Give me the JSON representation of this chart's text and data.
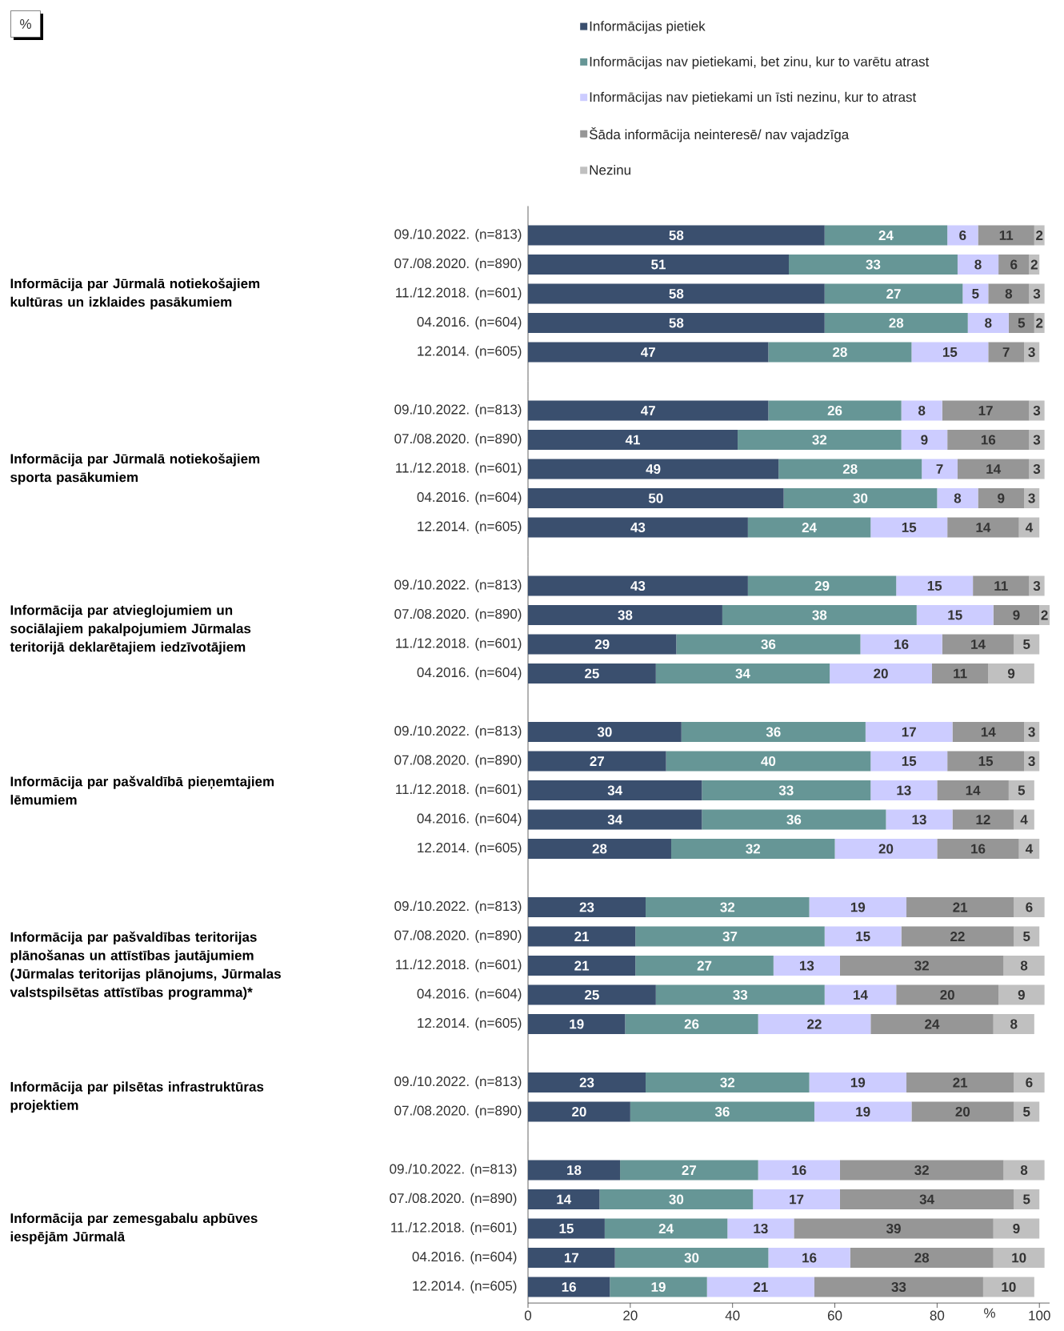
{
  "chart_data": [
    {
      "type": "bar",
      "orientation": "horizontal",
      "stacked": true,
      "data_labels": true,
      "legend": "top",
      "tick_labels": "y",
      "ylabel": "Informācija par Jūrmalā notiekošajiem kultūras un izklaides pasākumiem",
      "annotations": [
        "%"
      ],
      "categories": [
        "09./10.2022. (n=813)",
        "07./08.2020. (n=890)",
        "11./12.2018. (n=601)",
        "04.2016. (n=604)",
        "12.2014. (n=605)"
      ],
      "series": [
        {
          "name": "Informācijas pietiek",
          "color": "#3a4f6e",
          "values": [
            58,
            51,
            58,
            58,
            47
          ]
        },
        {
          "name": "Informācijas nav pietiekami, bet zinu, kur to varētu atrast",
          "color": "#669696",
          "values": [
            24,
            33,
            27,
            28,
            28
          ]
        },
        {
          "name": "Informācijas nav pietiekami un īsti nezinu, kur to atrast",
          "color": "#ccccff",
          "values": [
            6,
            8,
            5,
            8,
            15
          ]
        },
        {
          "name": "Šāda informācija neinteresē/ nav vajadzīga",
          "color": "#969696",
          "values": [
            11,
            6,
            8,
            5,
            7
          ]
        },
        {
          "name": "Nezinu",
          "color": "#c0c0c0",
          "values": [
            2,
            2,
            3,
            2,
            3
          ]
        }
      ]
    },
    {
      "type": "bar",
      "orientation": "horizontal",
      "stacked": true,
      "data_labels": true,
      "tick_labels": "y",
      "ylabel": "Informācija par Jūrmalā notiekošajiem sporta pasākumiem",
      "categories": [
        "09./10.2022. (n=813)",
        "07./08.2020. (n=890)",
        "11./12.2018. (n=601)",
        "04.2016. (n=604)",
        "12.2014. (n=605)"
      ],
      "series": [
        {
          "color": "#3a4f6e",
          "values": [
            47,
            41,
            49,
            50,
            43
          ]
        },
        {
          "color": "#669696",
          "values": [
            26,
            32,
            28,
            30,
            24
          ]
        },
        {
          "color": "#ccccff",
          "values": [
            8,
            9,
            7,
            8,
            15
          ]
        },
        {
          "color": "#969696",
          "values": [
            17,
            16,
            14,
            9,
            14
          ]
        },
        {
          "color": "#c0c0c0",
          "values": [
            3,
            3,
            3,
            3,
            4
          ]
        }
      ]
    },
    {
      "type": "bar",
      "orientation": "horizontal",
      "stacked": true,
      "data_labels": true,
      "tick_labels": "y",
      "ylabel": "Informācija par atvieglojumiem un sociālajiem pakalpojumiem Jūrmalas teritorijā deklarētajiem iedzīvotājiem",
      "categories": [
        "09./10.2022. (n=813)",
        "07./08.2020. (n=890)",
        "11./12.2018. (n=601)",
        "04.2016. (n=604)"
      ],
      "series": [
        {
          "color": "#3a4f6e",
          "values": [
            43,
            38,
            29,
            25
          ]
        },
        {
          "color": "#669696",
          "values": [
            29,
            38,
            36,
            34
          ]
        },
        {
          "color": "#ccccff",
          "values": [
            15,
            15,
            16,
            20
          ]
        },
        {
          "color": "#969696",
          "values": [
            11,
            9,
            14,
            11
          ]
        },
        {
          "color": "#c0c0c0",
          "values": [
            3,
            2,
            5,
            9
          ]
        }
      ]
    },
    {
      "type": "bar",
      "orientation": "horizontal",
      "stacked": true,
      "data_labels": true,
      "tick_labels": "y",
      "ylabel": "Informācija par pašvaldībā pieņemtajiem lēmumiem",
      "categories": [
        "09./10.2022. (n=813)",
        "07./08.2020. (n=890)",
        "11./12.2018. (n=601)",
        "04.2016. (n=604)",
        "12.2014. (n=605)"
      ],
      "series": [
        {
          "color": "#3a4f6e",
          "values": [
            30,
            27,
            34,
            34,
            28
          ]
        },
        {
          "color": "#669696",
          "values": [
            36,
            40,
            33,
            36,
            32
          ]
        },
        {
          "color": "#ccccff",
          "values": [
            17,
            15,
            13,
            13,
            20
          ]
        },
        {
          "color": "#969696",
          "values": [
            14,
            15,
            14,
            12,
            16
          ]
        },
        {
          "color": "#c0c0c0",
          "values": [
            3,
            3,
            5,
            4,
            4
          ]
        }
      ]
    },
    {
      "type": "bar",
      "orientation": "horizontal",
      "stacked": true,
      "data_labels": true,
      "tick_labels": "y",
      "ylabel": "Informācija par pašvaldības teritorijas plānošanas un attīstības jautājumiem (Jūrmalas teritorijas plānojums, Jūrmalas valstspilsētas attīstības programma)*",
      "categories": [
        "09./10.2022. (n=813)",
        "07./08.2020. (n=890)",
        "11./12.2018. (n=601)",
        "04.2016. (n=604)",
        "12.2014. (n=605)"
      ],
      "series": [
        {
          "color": "#3a4f6e",
          "values": [
            23,
            21,
            21,
            25,
            19
          ]
        },
        {
          "color": "#669696",
          "values": [
            32,
            37,
            27,
            33,
            26
          ]
        },
        {
          "color": "#ccccff",
          "values": [
            19,
            15,
            13,
            14,
            22
          ]
        },
        {
          "color": "#969696",
          "values": [
            21,
            22,
            32,
            20,
            24
          ]
        },
        {
          "color": "#c0c0c0",
          "values": [
            6,
            5,
            8,
            9,
            8
          ]
        }
      ]
    },
    {
      "type": "bar",
      "orientation": "horizontal",
      "stacked": true,
      "data_labels": true,
      "tick_labels": "y",
      "ylabel": "Informācija par pilsētas infrastruktūras projektiem",
      "categories": [
        "09./10.2022. (n=813)",
        "07./08.2020. (n=890)"
      ],
      "series": [
        {
          "color": "#3a4f6e",
          "values": [
            23,
            20
          ]
        },
        {
          "color": "#669696",
          "values": [
            32,
            36
          ]
        },
        {
          "color": "#ccccff",
          "values": [
            19,
            19
          ]
        },
        {
          "color": "#969696",
          "values": [
            21,
            20
          ]
        },
        {
          "color": "#c0c0c0",
          "values": [
            6,
            5
          ]
        }
      ]
    },
    {
      "type": "bar",
      "orientation": "horizontal",
      "stacked": true,
      "data_labels": true,
      "xlim": [
        0,
        102
      ],
      "xticks": [
        0,
        20,
        40,
        60,
        80,
        100
      ],
      "xlabel": "%",
      "ylabel": "Informācija par zemesgabalu apbūves iespējām Jūrmalā",
      "categories": [
        "09./10.2022. (n=813)",
        "07./08.2020. (n=890)",
        "11./12.2018. (n=601)",
        "04.2016. (n=604)",
        "12.2014. (n=605)"
      ],
      "series": [
        {
          "color": "#3a4f6e",
          "values": [
            18,
            14,
            15,
            17,
            16
          ]
        },
        {
          "color": "#669696",
          "values": [
            27,
            30,
            24,
            30,
            19
          ]
        },
        {
          "color": "#ccccff",
          "values": [
            16,
            17,
            13,
            16,
            21
          ]
        },
        {
          "color": "#969696",
          "values": [
            32,
            34,
            39,
            28,
            33
          ]
        },
        {
          "color": "#c0c0c0",
          "values": [
            8,
            5,
            9,
            10,
            10
          ]
        }
      ]
    }
  ]
}
